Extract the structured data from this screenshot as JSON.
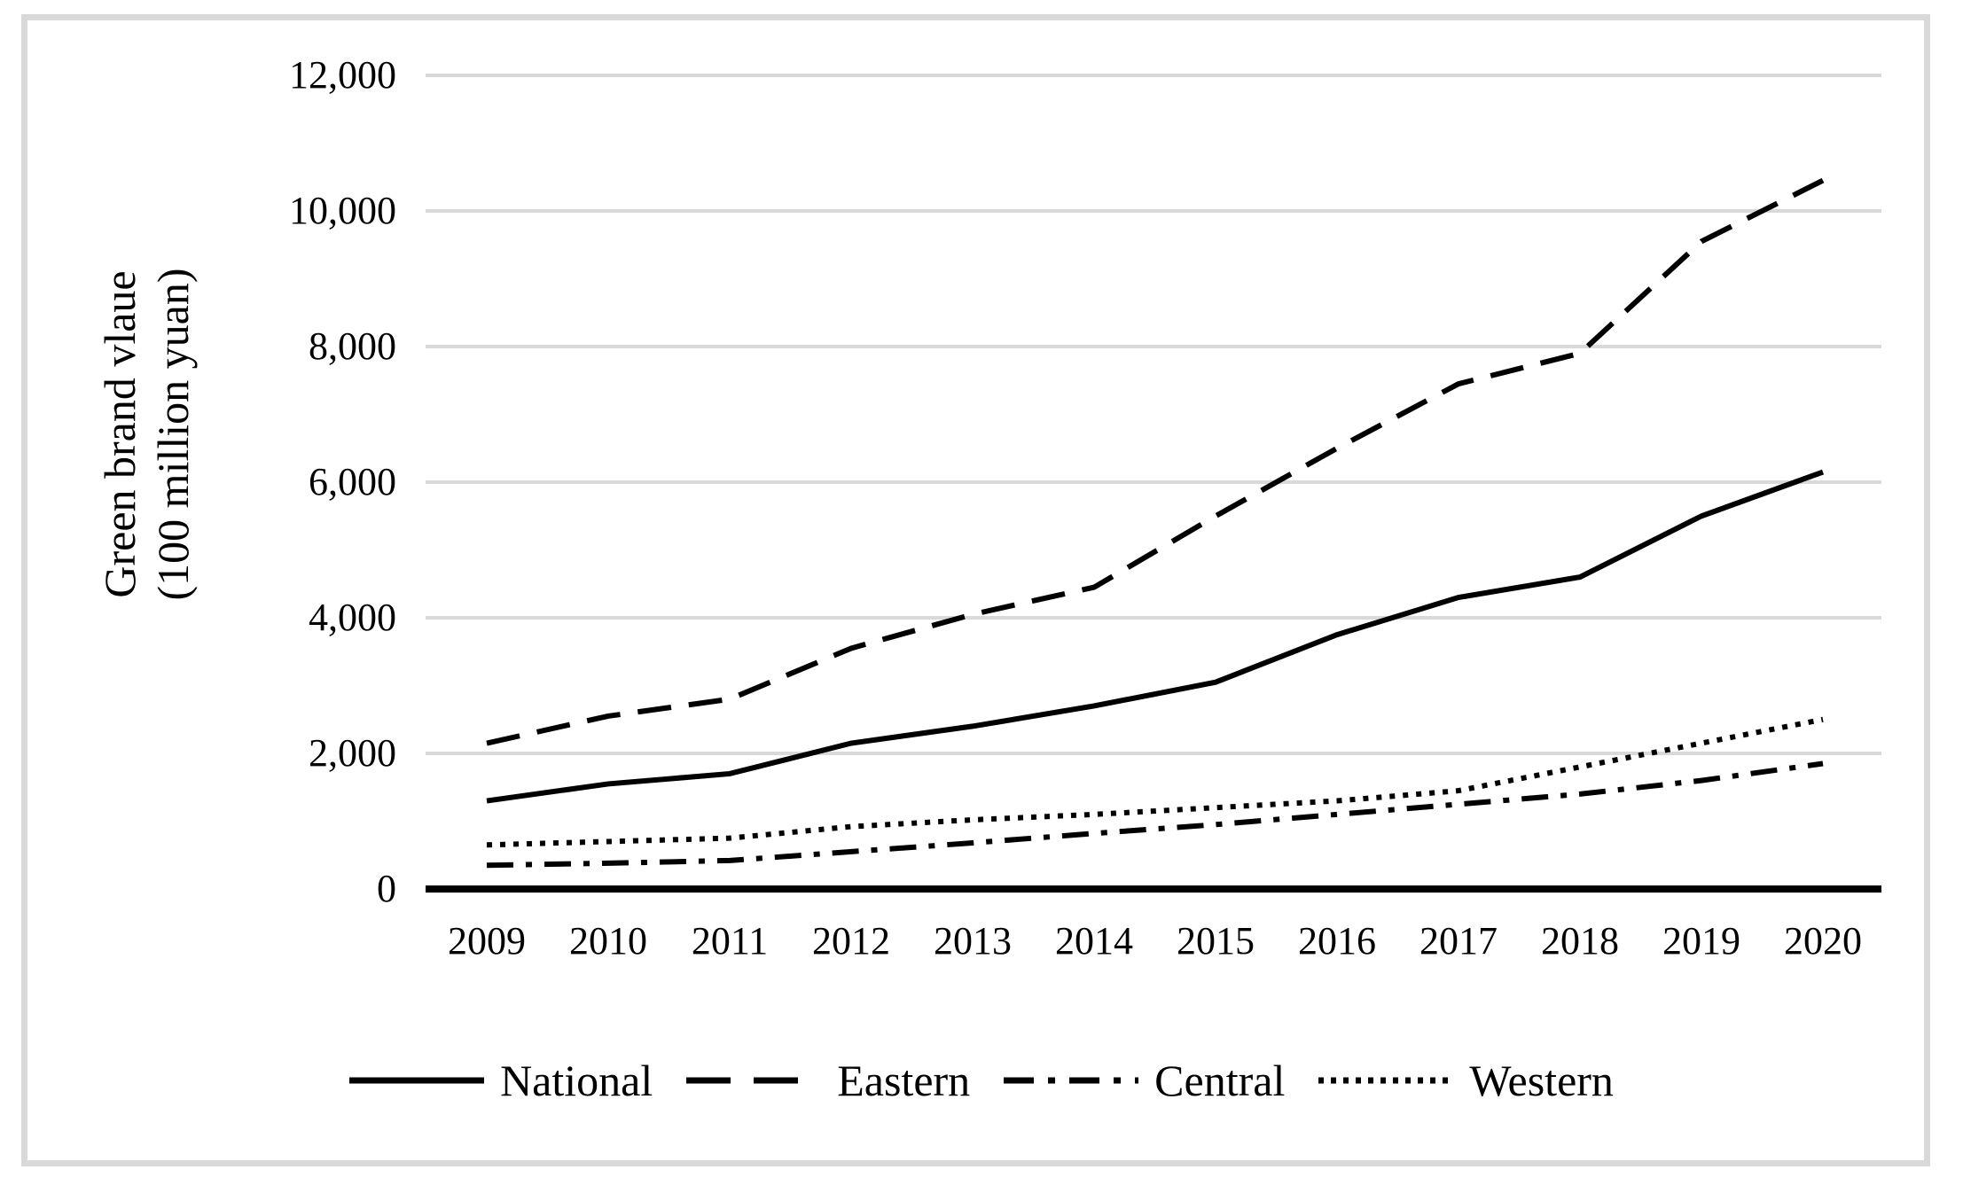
{
  "figure": {
    "ylabel_line1": "Green brand vlaue",
    "ylabel_line2": "(100 million yuan)"
  },
  "chart_data": {
    "type": "line",
    "title": "",
    "xlabel": "",
    "ylabel": "Green brand vlaue (100 million yuan)",
    "x_tick_labels": [
      "2009",
      "2010",
      "2011",
      "2012",
      "2013",
      "2014",
      "2015",
      "2016",
      "2017",
      "2018",
      "2019",
      "2020"
    ],
    "y_tick_labels": [
      "0",
      "2,000",
      "4,000",
      "6,000",
      "8,000",
      "10,000",
      "12,000"
    ],
    "ylim": [
      0,
      12000
    ],
    "y_tick_step": 2000,
    "grid": "horizontal-only",
    "gridline_color": "#d9d9d9",
    "line_color": "#000000",
    "legend_position": "bottom-center",
    "series": [
      {
        "name": "National",
        "style": "solid",
        "values": [
          1300,
          1550,
          1700,
          2150,
          2400,
          2700,
          3050,
          3750,
          4300,
          4600,
          5500,
          6150
        ]
      },
      {
        "name": "Eastern",
        "style": "dashed",
        "values": [
          2150,
          2550,
          2800,
          3550,
          4050,
          4450,
          5500,
          6500,
          7450,
          7900,
          9550,
          10450
        ]
      },
      {
        "name": "Central",
        "style": "dashdot",
        "values": [
          350,
          380,
          420,
          550,
          680,
          820,
          950,
          1100,
          1250,
          1400,
          1600,
          1850
        ]
      },
      {
        "name": "Western",
        "style": "dotted",
        "values": [
          650,
          700,
          750,
          920,
          1020,
          1100,
          1200,
          1300,
          1450,
          1800,
          2150,
          2500
        ]
      }
    ]
  }
}
